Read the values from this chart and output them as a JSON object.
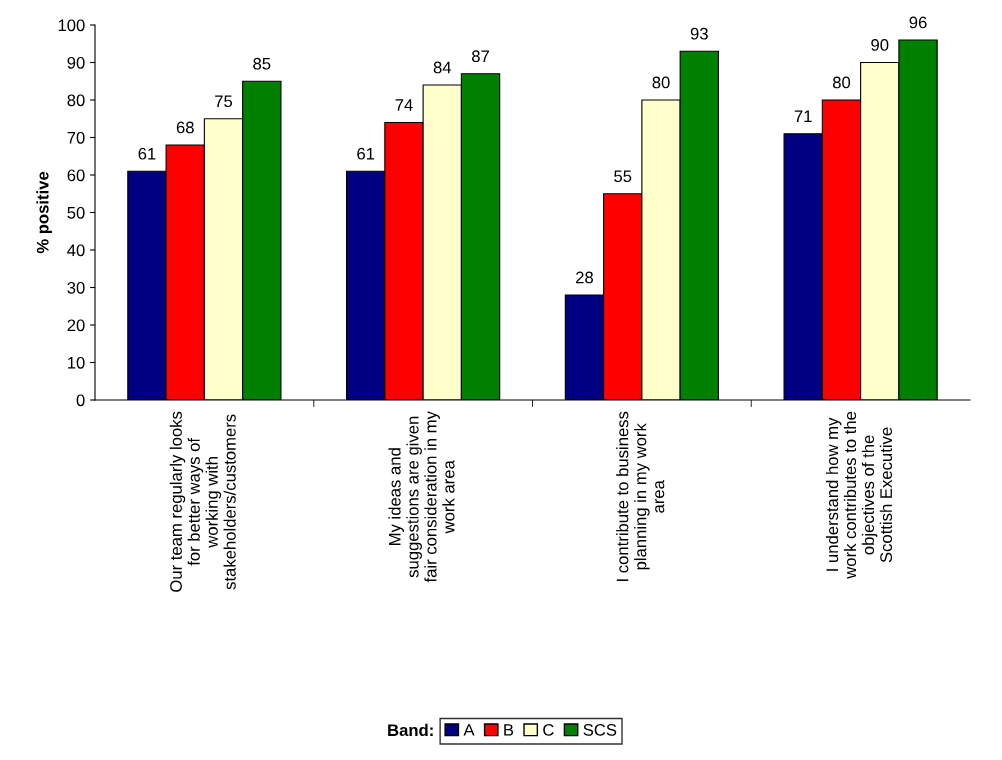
{
  "chart_data": {
    "type": "bar",
    "ylabel": "% positive",
    "legend_title": "Band:",
    "legend": "bottom",
    "grid": false,
    "data_labels": true,
    "ylim": [
      0,
      100
    ],
    "yticks": [
      0,
      10,
      20,
      30,
      40,
      50,
      60,
      70,
      80,
      90,
      100
    ],
    "categories": [
      "Our team regularly looks\nfor better ways of\nworking with\nstakeholders/customers",
      "My ideas and\nsuggestions are given\nfair consideration in my\nwork area",
      "I contribute to business\nplanning in my work\narea",
      "I understand how my\nwork contributes to the\nobjectives of the\nScottish Executive"
    ],
    "series": [
      {
        "name": "A",
        "color": "#000080",
        "values": [
          61,
          61,
          28,
          71
        ]
      },
      {
        "name": "B",
        "color": "#ff0000",
        "values": [
          68,
          74,
          55,
          80
        ]
      },
      {
        "name": "C",
        "color": "#ffffcc",
        "values": [
          75,
          84,
          80,
          90
        ]
      },
      {
        "name": "SCS",
        "color": "#008000",
        "values": [
          85,
          87,
          93,
          96
        ]
      }
    ]
  }
}
